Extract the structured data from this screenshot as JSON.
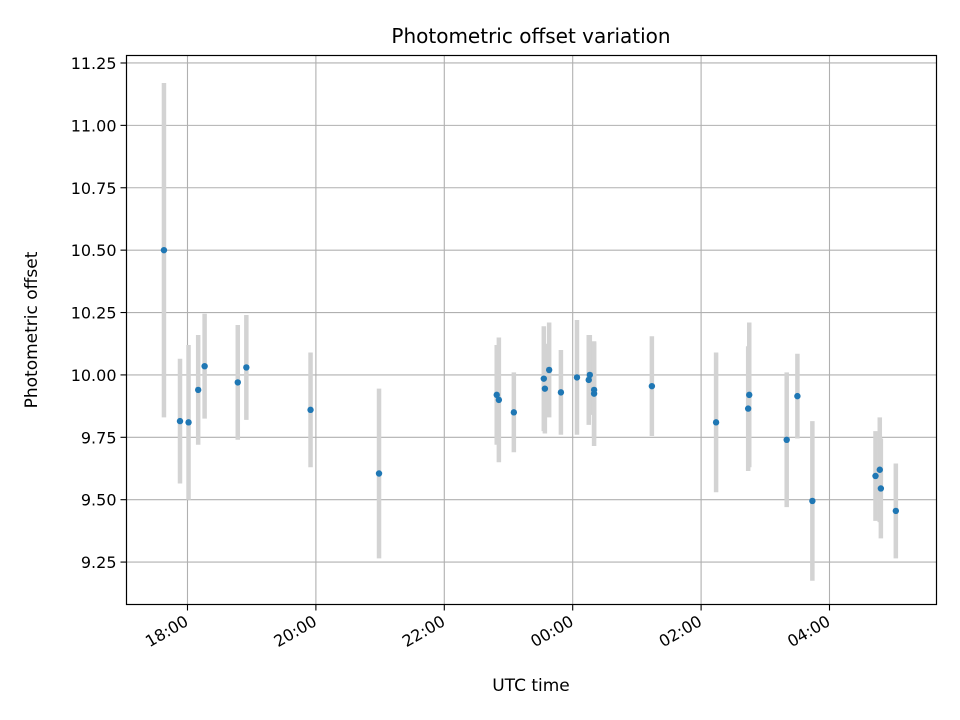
{
  "chart_data": {
    "type": "scatter",
    "title": "Photometric offset variation",
    "xlabel": "UTC time",
    "ylabel": "Photometric offset",
    "x_ticks": [
      "18:00",
      "20:00",
      "22:00",
      "00:00",
      "02:00",
      "04:00"
    ],
    "x_tick_hours": [
      18,
      20,
      22,
      24,
      26,
      28
    ],
    "y_ticks": [
      "9.25",
      "9.50",
      "9.75",
      "10.00",
      "10.25",
      "10.50",
      "10.75",
      "11.00",
      "11.25"
    ],
    "y_tick_values": [
      9.25,
      9.5,
      9.75,
      10.0,
      10.25,
      10.5,
      10.75,
      11.0,
      11.25
    ],
    "xlim": [
      "17:03",
      "05:40"
    ],
    "ylim": [
      9.08,
      11.28
    ],
    "grid": true,
    "colors": {
      "point": "#1f77b4",
      "errorbar": "#d3d3d3",
      "grid": "#b0b0b0"
    },
    "points": [
      {
        "t": "17:38",
        "y": 10.5,
        "err": 0.67
      },
      {
        "t": "17:53",
        "y": 9.815,
        "err": 0.25
      },
      {
        "t": "18:01",
        "y": 9.81,
        "err": 0.31
      },
      {
        "t": "18:10",
        "y": 9.94,
        "err": 0.22
      },
      {
        "t": "18:16",
        "y": 10.035,
        "err": 0.21
      },
      {
        "t": "18:47",
        "y": 9.97,
        "err": 0.23
      },
      {
        "t": "18:55",
        "y": 10.03,
        "err": 0.21
      },
      {
        "t": "19:55",
        "y": 9.86,
        "err": 0.23
      },
      {
        "t": "20:59",
        "y": 9.605,
        "err": 0.34
      },
      {
        "t": "22:49",
        "y": 9.92,
        "err": 0.2
      },
      {
        "t": "22:51",
        "y": 9.9,
        "err": 0.25
      },
      {
        "t": "23:05",
        "y": 9.85,
        "err": 0.16
      },
      {
        "t": "23:33",
        "y": 9.985,
        "err": 0.21
      },
      {
        "t": "23:34",
        "y": 9.945,
        "err": 0.18
      },
      {
        "t": "23:38",
        "y": 10.02,
        "err": 0.19
      },
      {
        "t": "23:49",
        "y": 9.93,
        "err": 0.17
      },
      {
        "t": "00:04",
        "y": 9.99,
        "err": 0.23
      },
      {
        "t": "00:15",
        "y": 9.98,
        "err": 0.18
      },
      {
        "t": "00:16",
        "y": 10.0,
        "err": 0.16
      },
      {
        "t": "00:20",
        "y": 9.94,
        "err": 0.19
      },
      {
        "t": "00:20",
        "y": 9.925,
        "err": 0.21
      },
      {
        "t": "01:14",
        "y": 9.955,
        "err": 0.2
      },
      {
        "t": "02:14",
        "y": 9.81,
        "err": 0.28
      },
      {
        "t": "02:44",
        "y": 9.865,
        "err": 0.25
      },
      {
        "t": "02:45",
        "y": 9.92,
        "err": 0.29
      },
      {
        "t": "03:20",
        "y": 9.74,
        "err": 0.27
      },
      {
        "t": "03:30",
        "y": 9.915,
        "err": 0.17
      },
      {
        "t": "03:44",
        "y": 9.495,
        "err": 0.32
      },
      {
        "t": "04:43",
        "y": 9.595,
        "err": 0.18
      },
      {
        "t": "04:47",
        "y": 9.62,
        "err": 0.21
      },
      {
        "t": "04:48",
        "y": 9.545,
        "err": 0.2
      },
      {
        "t": "05:02",
        "y": 9.455,
        "err": 0.19
      }
    ]
  }
}
